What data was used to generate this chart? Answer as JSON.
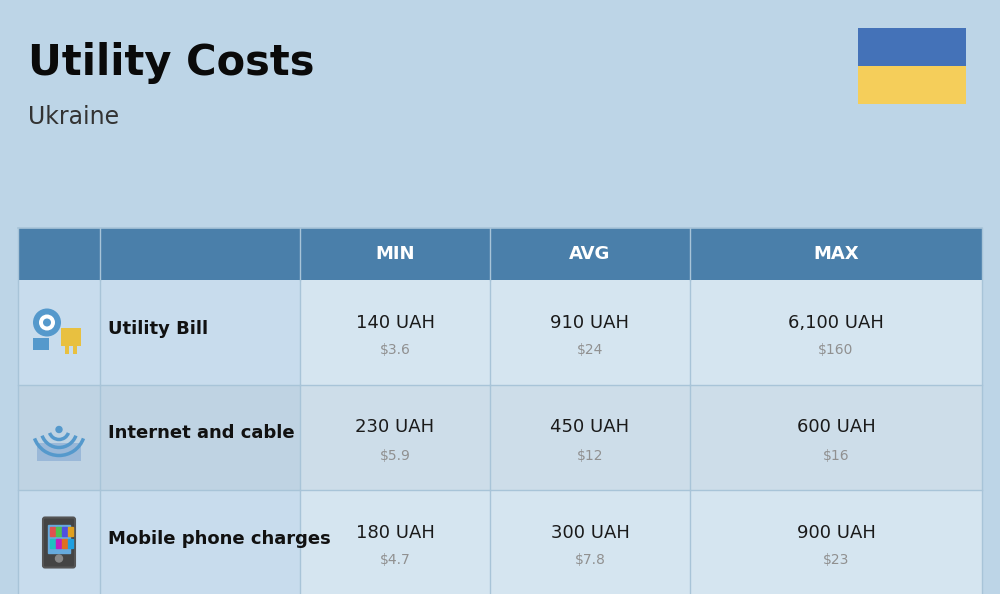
{
  "title": "Utility Costs",
  "subtitle": "Ukraine",
  "background_color": "#bdd5e7",
  "header_bg_color": "#4a7faa",
  "header_text_color": "#ffffff",
  "row_bg_colors": [
    "#c8dced",
    "#bfd3e3",
    "#c8dced"
  ],
  "cell_bg_colors": [
    "#d5e5f0",
    "#cddde9",
    "#d5e5f0"
  ],
  "col_headers": [
    "MIN",
    "AVG",
    "MAX"
  ],
  "rows": [
    {
      "label": "Utility Bill",
      "uah_values": [
        "140 UAH",
        "910 UAH",
        "6,100 UAH"
      ],
      "usd_values": [
        "$3.6",
        "$24",
        "$160"
      ]
    },
    {
      "label": "Internet and cable",
      "uah_values": [
        "230 UAH",
        "450 UAH",
        "600 UAH"
      ],
      "usd_values": [
        "$5.9",
        "$12",
        "$16"
      ]
    },
    {
      "label": "Mobile phone charges",
      "uah_values": [
        "180 UAH",
        "300 UAH",
        "900 UAH"
      ],
      "usd_values": [
        "$4.7",
        "$7.8",
        "$23"
      ]
    }
  ],
  "ukraine_flag_blue": "#4472b8",
  "ukraine_flag_yellow": "#f5ce5a",
  "uah_text_color": "#1a1a1a",
  "usd_text_color": "#909090",
  "label_text_color": "#111111",
  "separator_color": "#a8c4d8",
  "title_color": "#0a0a0a",
  "subtitle_color": "#333333"
}
